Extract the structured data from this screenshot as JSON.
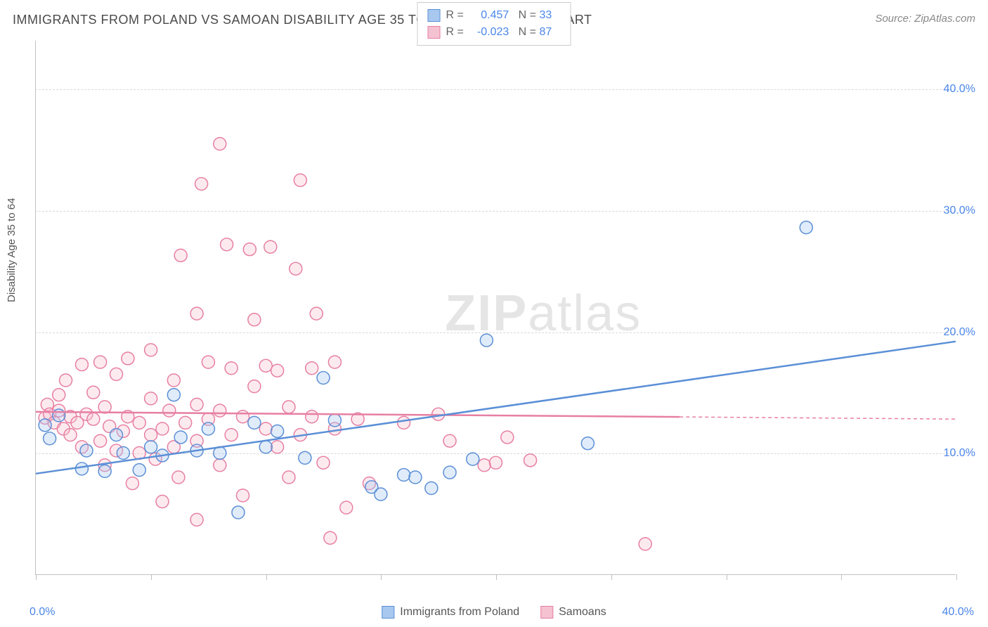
{
  "title": "IMMIGRANTS FROM POLAND VS SAMOAN DISABILITY AGE 35 TO 64 CORRELATION CHART",
  "source": "Source: ZipAtlas.com",
  "y_axis_label": "Disability Age 35 to 64",
  "watermark": {
    "bold": "ZIP",
    "light": "atlas"
  },
  "chart": {
    "type": "scatter",
    "xlim": [
      0,
      40
    ],
    "ylim": [
      0,
      44
    ],
    "x_ticks": [
      0,
      40
    ],
    "x_tick_labels": [
      "0.0%",
      "40.0%"
    ],
    "y_ticks": [
      10,
      20,
      30,
      40
    ],
    "y_tick_labels": [
      "10.0%",
      "20.0%",
      "30.0%",
      "40.0%"
    ],
    "x_minor_ticks": [
      5,
      10,
      15,
      20,
      25,
      30,
      35
    ],
    "marker_radius": 9,
    "marker_fill_opacity": 0.35,
    "marker_stroke_width": 1.5,
    "line_stroke_width": 2.5,
    "background_color": "#ffffff",
    "grid_color": "#d8d8d8",
    "axis_color": "#c0c0c0",
    "tick_label_color": "#4a86e8"
  },
  "series": [
    {
      "key": "poland",
      "label": "Immigrants from Poland",
      "color_fill": "#a8c8f0",
      "color_stroke": "#5b8fd6",
      "regression": {
        "x0": 0,
        "y0": 8.3,
        "x1": 40,
        "y1": 19.2,
        "dash_from_x": null
      },
      "stats": {
        "R": "0.457",
        "N": "33"
      },
      "points": [
        [
          0.4,
          12.3
        ],
        [
          0.6,
          11.2
        ],
        [
          1,
          13.1
        ],
        [
          2,
          8.7
        ],
        [
          2.2,
          10.2
        ],
        [
          3,
          8.5
        ],
        [
          3.5,
          11.5
        ],
        [
          3.8,
          10.0
        ],
        [
          4.5,
          8.6
        ],
        [
          5,
          10.5
        ],
        [
          5.5,
          9.8
        ],
        [
          6,
          14.8
        ],
        [
          6.3,
          11.3
        ],
        [
          7,
          10.2
        ],
        [
          7.5,
          12.0
        ],
        [
          8,
          10.0
        ],
        [
          8.8,
          5.1
        ],
        [
          9.5,
          12.5
        ],
        [
          10,
          10.5
        ],
        [
          10.5,
          11.8
        ],
        [
          11.7,
          9.6
        ],
        [
          12.5,
          16.2
        ],
        [
          13,
          12.7
        ],
        [
          14.6,
          7.2
        ],
        [
          15,
          6.6
        ],
        [
          16,
          8.2
        ],
        [
          16.5,
          8.0
        ],
        [
          17.2,
          7.1
        ],
        [
          18,
          8.4
        ],
        [
          19,
          9.5
        ],
        [
          19.6,
          19.3
        ],
        [
          24,
          10.8
        ],
        [
          33.5,
          28.6
        ]
      ]
    },
    {
      "key": "samoans",
      "label": "Samoans",
      "color_fill": "#f5c2d1",
      "color_stroke": "#e77fa3",
      "regression": {
        "x0": 0,
        "y0": 13.4,
        "x1": 40,
        "y1": 12.8,
        "dash_from_x": 28
      },
      "stats": {
        "R": "-0.023",
        "N": "87"
      },
      "points": [
        [
          0.4,
          12.9
        ],
        [
          0.5,
          14.0
        ],
        [
          0.6,
          13.2
        ],
        [
          0.8,
          12.5
        ],
        [
          1,
          13.5
        ],
        [
          1,
          14.8
        ],
        [
          1.2,
          12.0
        ],
        [
          1.3,
          16.0
        ],
        [
          1.5,
          11.5
        ],
        [
          1.5,
          13.0
        ],
        [
          1.8,
          12.5
        ],
        [
          2,
          10.5
        ],
        [
          2,
          17.3
        ],
        [
          2.2,
          13.2
        ],
        [
          2.5,
          12.8
        ],
        [
          2.5,
          15.0
        ],
        [
          2.8,
          11.0
        ],
        [
          2.8,
          17.5
        ],
        [
          3,
          13.8
        ],
        [
          3,
          9.0
        ],
        [
          3.2,
          12.2
        ],
        [
          3.5,
          10.2
        ],
        [
          3.5,
          16.5
        ],
        [
          3.8,
          11.8
        ],
        [
          4,
          13.0
        ],
        [
          4,
          17.8
        ],
        [
          4.2,
          7.5
        ],
        [
          4.5,
          12.5
        ],
        [
          4.5,
          10.0
        ],
        [
          5,
          11.5
        ],
        [
          5,
          14.5
        ],
        [
          5,
          18.5
        ],
        [
          5.2,
          9.5
        ],
        [
          5.5,
          12.0
        ],
        [
          5.5,
          6.0
        ],
        [
          5.8,
          13.5
        ],
        [
          6,
          10.5
        ],
        [
          6,
          16.0
        ],
        [
          6.2,
          8.0
        ],
        [
          6.3,
          26.3
        ],
        [
          6.5,
          12.5
        ],
        [
          7,
          4.5
        ],
        [
          7,
          11.0
        ],
        [
          7,
          14.0
        ],
        [
          7,
          21.5
        ],
        [
          7.2,
          32.2
        ],
        [
          7.5,
          12.8
        ],
        [
          7.5,
          17.5
        ],
        [
          8,
          9.0
        ],
        [
          8,
          13.5
        ],
        [
          8,
          35.5
        ],
        [
          8.3,
          27.2
        ],
        [
          8.5,
          11.5
        ],
        [
          8.5,
          17.0
        ],
        [
          9,
          13.0
        ],
        [
          9,
          6.5
        ],
        [
          9.3,
          26.8
        ],
        [
          9.5,
          15.5
        ],
        [
          9.5,
          21.0
        ],
        [
          10,
          12.0
        ],
        [
          10,
          17.2
        ],
        [
          10.2,
          27.0
        ],
        [
          10.5,
          10.5
        ],
        [
          10.5,
          16.8
        ],
        [
          11,
          13.8
        ],
        [
          11,
          8.0
        ],
        [
          11.3,
          25.2
        ],
        [
          11.5,
          11.5
        ],
        [
          11.5,
          32.5
        ],
        [
          12,
          17.0
        ],
        [
          12,
          13.0
        ],
        [
          12.2,
          21.5
        ],
        [
          12.5,
          9.2
        ],
        [
          12.8,
          3.0
        ],
        [
          13,
          12.0
        ],
        [
          13,
          17.5
        ],
        [
          13.5,
          5.5
        ],
        [
          14,
          12.8
        ],
        [
          14.5,
          7.5
        ],
        [
          16,
          12.5
        ],
        [
          17.5,
          13.2
        ],
        [
          18,
          11.0
        ],
        [
          19.5,
          9.0
        ],
        [
          20,
          9.2
        ],
        [
          20.5,
          11.3
        ],
        [
          21.5,
          9.4
        ],
        [
          26.5,
          2.5
        ]
      ]
    }
  ],
  "legend_bottom": [
    {
      "label": "Immigrants from Poland",
      "series": "poland"
    },
    {
      "label": "Samoans",
      "series": "samoans"
    }
  ]
}
